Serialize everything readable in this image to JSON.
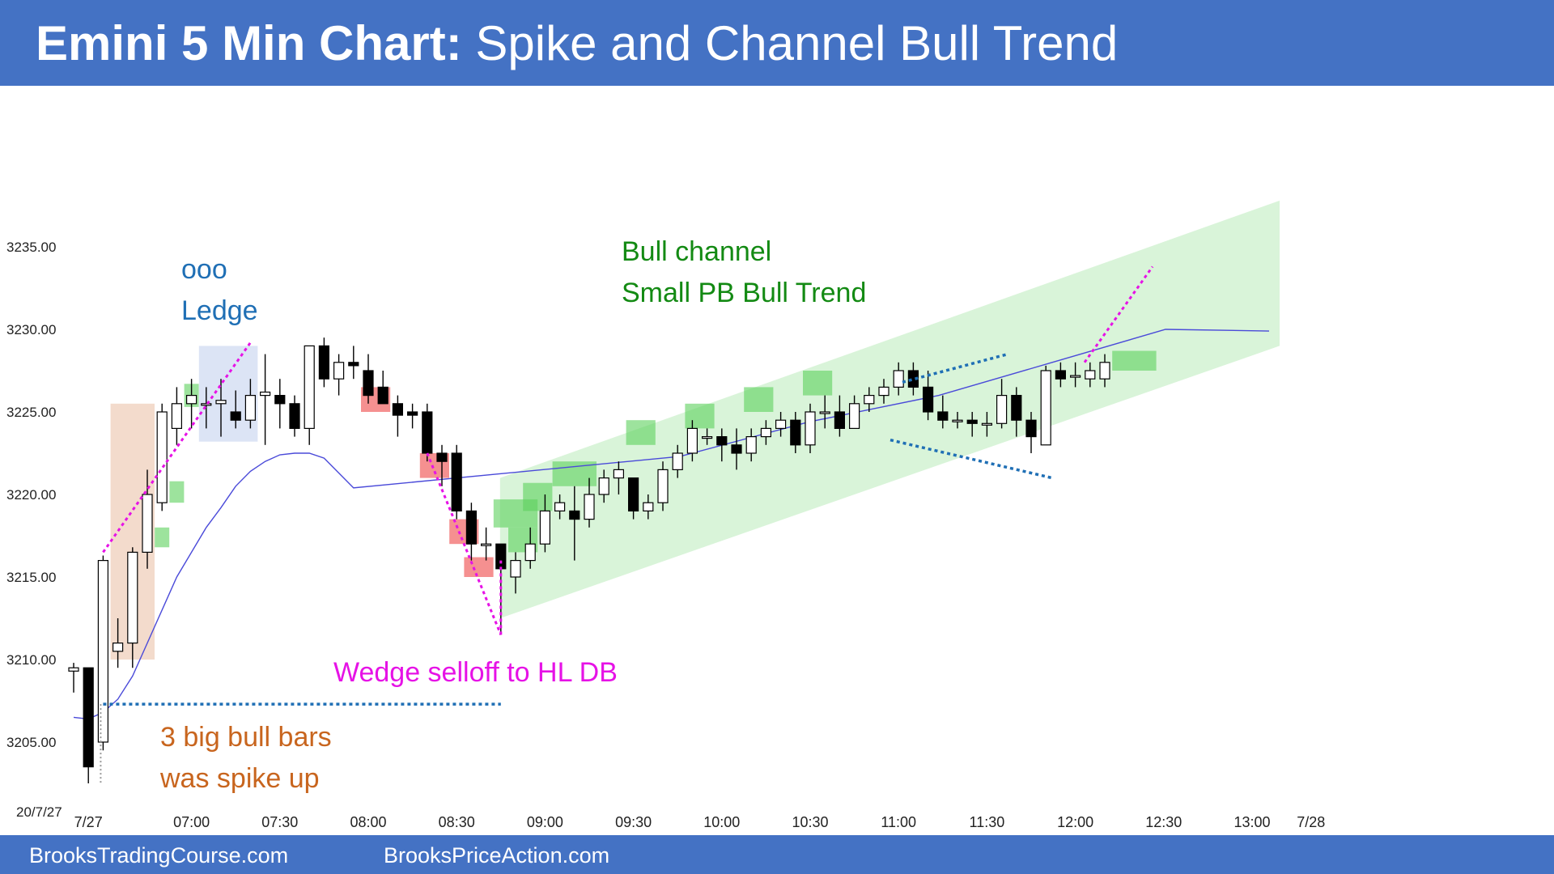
{
  "header": {
    "title_bold": "Emini 5 Min Chart:",
    "title_rest": "Spike and Channel Bull Trend"
  },
  "footer": {
    "left": "BrooksTradingCourse.com",
    "right": "BrooksPriceAction.com"
  },
  "chart_data": {
    "type": "candlestick",
    "date_label": "20/7/27",
    "y_ticks": [
      3205,
      3210,
      3215,
      3220,
      3225,
      3230,
      3235
    ],
    "ylim": [
      3202,
      3237
    ],
    "x_ticks": [
      {
        "i": 1,
        "label": "7/27"
      },
      {
        "i": 8,
        "label": "07:00"
      },
      {
        "i": 14,
        "label": "07:30"
      },
      {
        "i": 20,
        "label": "08:00"
      },
      {
        "i": 26,
        "label": "08:30"
      },
      {
        "i": 32,
        "label": "09:00"
      },
      {
        "i": 38,
        "label": "09:30"
      },
      {
        "i": 44,
        "label": "10:00"
      },
      {
        "i": 50,
        "label": "10:30"
      },
      {
        "i": 56,
        "label": "11:00"
      },
      {
        "i": 62,
        "label": "11:30"
      },
      {
        "i": 68,
        "label": "12:00"
      },
      {
        "i": 74,
        "label": "12:30"
      },
      {
        "i": 80,
        "label": "13:00"
      },
      {
        "i": 84,
        "label": "7/28"
      }
    ],
    "bars": [
      [
        3209.3,
        3209.8,
        3208.0,
        3209.5
      ],
      [
        3209.5,
        3209.5,
        3202.5,
        3203.5
      ],
      [
        3205.0,
        3216.3,
        3204.5,
        3216.0
      ],
      [
        3210.5,
        3212.5,
        3209.5,
        3211.0
      ],
      [
        3211.0,
        3216.8,
        3209.5,
        3216.5
      ],
      [
        3216.5,
        3221.5,
        3215.5,
        3220.0
      ],
      [
        3219.5,
        3225.5,
        3219.0,
        3225.0
      ],
      [
        3224.0,
        3226.5,
        3223.0,
        3225.5
      ],
      [
        3225.5,
        3227.0,
        3224.0,
        3226.0
      ],
      [
        3225.5,
        3226.5,
        3224.0,
        3225.5
      ],
      [
        3225.5,
        3227.0,
        3223.5,
        3225.7
      ],
      [
        3225.0,
        3226.3,
        3224.0,
        3224.5
      ],
      [
        3224.5,
        3227.0,
        3224.0,
        3226.0
      ],
      [
        3226.0,
        3228.5,
        3223.0,
        3226.2
      ],
      [
        3226.0,
        3227.0,
        3224.0,
        3225.5
      ],
      [
        3225.5,
        3226.0,
        3223.5,
        3224.0
      ],
      [
        3224.0,
        3229.0,
        3223.0,
        3229.0
      ],
      [
        3229.0,
        3229.5,
        3226.5,
        3227.0
      ],
      [
        3227.0,
        3228.5,
        3226.0,
        3228.0
      ],
      [
        3228.0,
        3229.0,
        3227.0,
        3227.8
      ],
      [
        3227.5,
        3228.5,
        3225.5,
        3226.0
      ],
      [
        3226.5,
        3227.5,
        3225.5,
        3225.5
      ],
      [
        3225.5,
        3226.0,
        3223.5,
        3224.8
      ],
      [
        3225.0,
        3225.5,
        3224.0,
        3224.8
      ],
      [
        3225.0,
        3225.5,
        3222.0,
        3222.5
      ],
      [
        3222.5,
        3223.0,
        3220.5,
        3222.0
      ],
      [
        3222.5,
        3223.0,
        3218.5,
        3219.0
      ],
      [
        3219.0,
        3219.5,
        3216.0,
        3217.0
      ],
      [
        3217.0,
        3218.0,
        3216.0,
        3217.0
      ],
      [
        3217.0,
        3217.0,
        3211.5,
        3215.5
      ],
      [
        3215.0,
        3216.5,
        3214.0,
        3216.0
      ],
      [
        3216.0,
        3218.0,
        3215.5,
        3217.0
      ],
      [
        3217.0,
        3220.0,
        3216.5,
        3219.0
      ],
      [
        3219.0,
        3220.0,
        3218.5,
        3219.5
      ],
      [
        3219.0,
        3220.5,
        3216.0,
        3218.5
      ],
      [
        3218.5,
        3221.0,
        3218.0,
        3220.0
      ],
      [
        3220.0,
        3221.5,
        3219.5,
        3221.0
      ],
      [
        3221.0,
        3222.0,
        3220.0,
        3221.5
      ],
      [
        3221.0,
        3221.0,
        3218.5,
        3219.0
      ],
      [
        3219.0,
        3220.0,
        3218.5,
        3219.5
      ],
      [
        3219.5,
        3222.0,
        3219.0,
        3221.5
      ],
      [
        3221.5,
        3223.0,
        3221.0,
        3222.5
      ],
      [
        3222.5,
        3224.5,
        3222.0,
        3224.0
      ],
      [
        3223.5,
        3224.0,
        3223.0,
        3223.5
      ],
      [
        3223.5,
        3224.0,
        3222.0,
        3223.0
      ],
      [
        3223.0,
        3224.0,
        3221.5,
        3222.5
      ],
      [
        3222.5,
        3224.0,
        3222.0,
        3223.5
      ],
      [
        3223.5,
        3224.5,
        3223.0,
        3224.0
      ],
      [
        3224.0,
        3225.0,
        3223.5,
        3224.5
      ],
      [
        3224.5,
        3225.0,
        3222.5,
        3223.0
      ],
      [
        3223.0,
        3225.5,
        3222.5,
        3225.0
      ],
      [
        3225.0,
        3226.0,
        3224.0,
        3225.0
      ],
      [
        3225.0,
        3226.0,
        3223.5,
        3224.0
      ],
      [
        3224.0,
        3226.0,
        3224.0,
        3225.5
      ],
      [
        3225.5,
        3226.5,
        3225.0,
        3226.0
      ],
      [
        3226.0,
        3227.0,
        3225.5,
        3226.5
      ],
      [
        3226.5,
        3228.0,
        3226.0,
        3227.5
      ],
      [
        3227.5,
        3228.0,
        3226.0,
        3226.5
      ],
      [
        3226.5,
        3227.5,
        3224.5,
        3225.0
      ],
      [
        3225.0,
        3226.0,
        3224.0,
        3224.5
      ],
      [
        3224.5,
        3225.0,
        3224.0,
        3224.5
      ],
      [
        3224.5,
        3225.0,
        3223.5,
        3224.3
      ],
      [
        3224.3,
        3225.0,
        3223.5,
        3224.3
      ],
      [
        3224.3,
        3227.0,
        3224.0,
        3226.0
      ],
      [
        3226.0,
        3226.5,
        3223.5,
        3224.5
      ],
      [
        3224.5,
        3225.0,
        3222.5,
        3223.5
      ],
      [
        3223.0,
        3227.8,
        3223.0,
        3227.5
      ],
      [
        3227.5,
        3228.0,
        3226.5,
        3227.0
      ],
      [
        3227.2,
        3228.0,
        3226.5,
        3227.2
      ],
      [
        3227.0,
        3228.0,
        3226.5,
        3227.5
      ],
      [
        3227.0,
        3228.5,
        3226.5,
        3228.0
      ]
    ],
    "annotations": [
      {
        "text": "ooo",
        "color": "#1F6FB5"
      },
      {
        "text": "Ledge",
        "color": "#1F6FB5"
      },
      {
        "text": "Bull channel",
        "color": "#138A13"
      },
      {
        "text": "Small PB Bull Trend",
        "color": "#138A13"
      },
      {
        "text": "Wedge selloff to HL DB",
        "color": "#E612E6"
      },
      {
        "text": "3 big bull bars",
        "color": "#C8651E"
      },
      {
        "text": "was spike up",
        "color": "#C8651E"
      }
    ]
  }
}
